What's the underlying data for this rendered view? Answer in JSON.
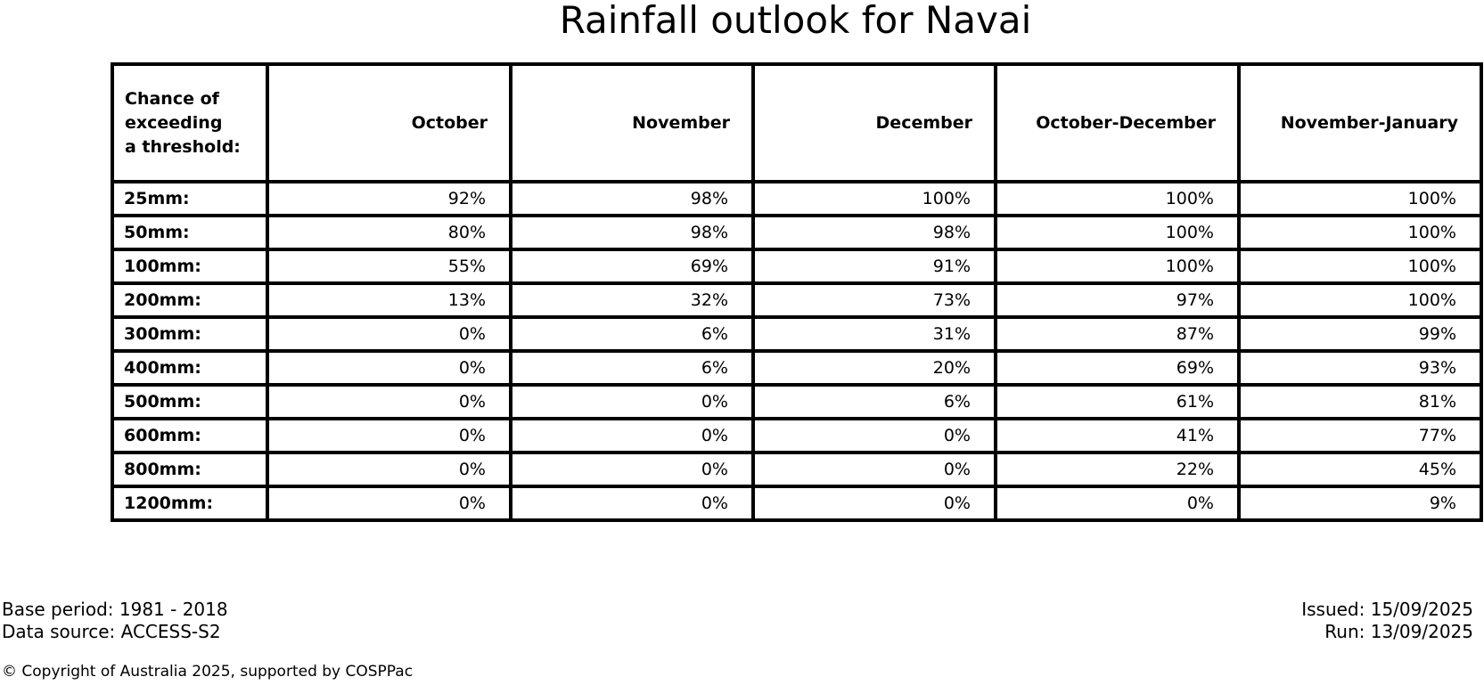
{
  "chart_data": {
    "type": "table",
    "title": "Rainfall outlook for Navai",
    "corner_header": "Chance of\nexceeding\na threshold:",
    "columns": [
      "October",
      "November",
      "December",
      "October-December",
      "November-January"
    ],
    "rows": [
      {
        "label": "25mm:",
        "values": [
          "92%",
          "98%",
          "100%",
          "100%",
          "100%"
        ]
      },
      {
        "label": "50mm:",
        "values": [
          "80%",
          "98%",
          "98%",
          "100%",
          "100%"
        ]
      },
      {
        "label": "100mm:",
        "values": [
          "55%",
          "69%",
          "91%",
          "100%",
          "100%"
        ]
      },
      {
        "label": "200mm:",
        "values": [
          "13%",
          "32%",
          "73%",
          "97%",
          "100%"
        ]
      },
      {
        "label": "300mm:",
        "values": [
          "0%",
          "6%",
          "31%",
          "87%",
          "99%"
        ]
      },
      {
        "label": "400mm:",
        "values": [
          "0%",
          "6%",
          "20%",
          "69%",
          "93%"
        ]
      },
      {
        "label": "500mm:",
        "values": [
          "0%",
          "0%",
          "6%",
          "61%",
          "81%"
        ]
      },
      {
        "label": "600mm:",
        "values": [
          "0%",
          "0%",
          "0%",
          "41%",
          "77%"
        ]
      },
      {
        "label": "800mm:",
        "values": [
          "0%",
          "0%",
          "0%",
          "22%",
          "45%"
        ]
      },
      {
        "label": "1200mm:",
        "values": [
          "0%",
          "0%",
          "0%",
          "0%",
          "9%"
        ]
      }
    ],
    "layout": {
      "grid": "on",
      "value_alignment": "right",
      "header_alignment": "right"
    }
  },
  "footer": {
    "base_period": "Base period: 1981 - 2018",
    "data_source": "Data source: ACCESS-S2",
    "issued": "Issued: 15/09/2025",
    "run": "Run: 13/09/2025",
    "copyright": "© Copyright of Australia 2025, supported by COSPPac"
  },
  "colors": {
    "background": "#ffffff",
    "text": "#000000",
    "border": "#000000"
  }
}
